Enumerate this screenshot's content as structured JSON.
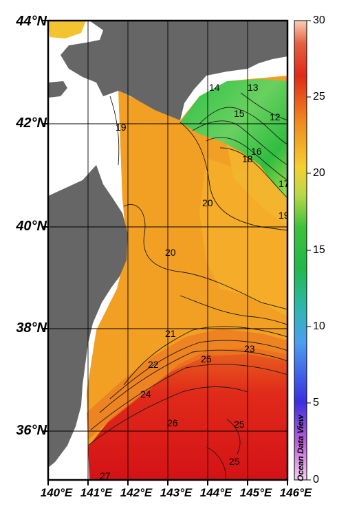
{
  "map": {
    "lat_labels": [
      "44°N",
      "42°N",
      "40°N",
      "38°N",
      "36°N"
    ],
    "lon_labels": [
      "140°E",
      "141°E",
      "142°E",
      "143°E",
      "144°E",
      "145°E",
      "146°E"
    ],
    "contour_labels": [
      "14",
      "13",
      "15",
      "12",
      "16",
      "18",
      "17",
      "19",
      "20",
      "20",
      "21",
      "22",
      "23",
      "24",
      "25",
      "26",
      "25",
      "25",
      "27",
      "19"
    ],
    "land_color": "#666666",
    "credit": "Ocean Data View"
  },
  "colorbar": {
    "ticks": [
      "30",
      "25",
      "20",
      "15",
      "10",
      "5",
      "0"
    ],
    "range": [
      0,
      30
    ],
    "colors": [
      "#f7c9a8",
      "#dc1414",
      "#f08a1e",
      "#f5c830",
      "#2dbf3a",
      "#2ab3a8",
      "#4a8ef0",
      "#3030d8",
      "#c060d8",
      "#f0c0f0"
    ]
  }
}
